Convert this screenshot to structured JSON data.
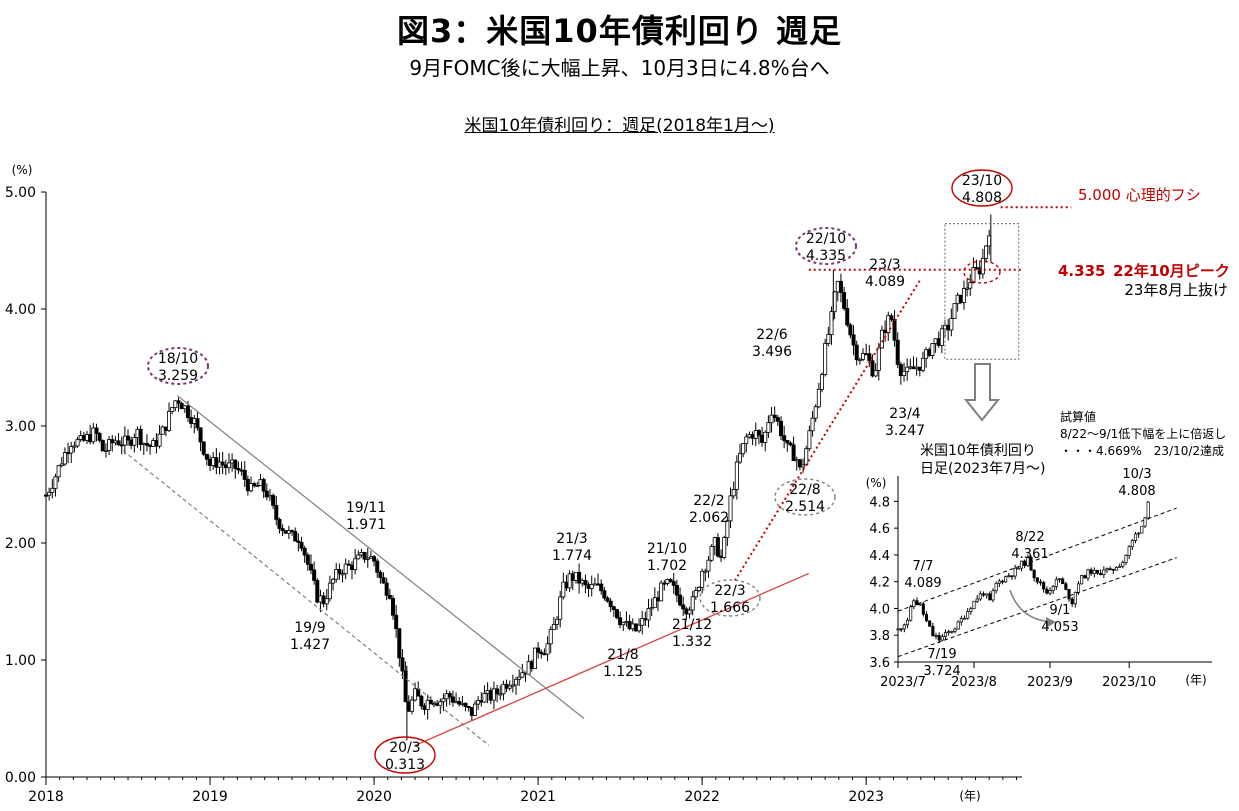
{
  "header": {
    "title": "図3：米国10年債利回り 週足",
    "subtitle": "9月FOMC後に大幅上昇、10月3日に4.8%台へ",
    "chart_title": "米国10年債利回り：週足(2018年1月～)"
  },
  "colors": {
    "candle": "#000000",
    "accent_red": "#c00000",
    "trend_red": "#d84040",
    "gray": "#7f7f7f",
    "purple_dotted": "#7a3470"
  },
  "chart_data": [
    {
      "type": "candlestick",
      "frequency": "weekly",
      "unit_label": "(%)",
      "x_unit_label": "(年)",
      "x_ticks": [
        "2018",
        "2019",
        "2020",
        "2021",
        "2022",
        "2023"
      ],
      "y_ticks": [
        "0.00",
        "1.00",
        "2.00",
        "3.00",
        "4.00",
        "5.00"
      ],
      "ylim": [
        0,
        5
      ],
      "xlim": [
        2018.0,
        2023.95
      ],
      "path": [
        [
          2018.0,
          2.41
        ],
        [
          2018.05,
          2.55
        ],
        [
          2018.1,
          2.72
        ],
        [
          2018.15,
          2.87
        ],
        [
          2018.22,
          2.86
        ],
        [
          2018.3,
          2.95
        ],
        [
          2018.35,
          2.78
        ],
        [
          2018.42,
          2.88
        ],
        [
          2018.5,
          2.85
        ],
        [
          2018.55,
          2.96
        ],
        [
          2018.6,
          2.85
        ],
        [
          2018.65,
          2.82
        ],
        [
          2018.72,
          2.97
        ],
        [
          2018.78,
          3.2
        ],
        [
          2018.8,
          3.24
        ],
        [
          2018.85,
          3.15
        ],
        [
          2018.9,
          3.05
        ],
        [
          2018.95,
          2.85
        ],
        [
          2019.0,
          2.67
        ],
        [
          2019.05,
          2.7
        ],
        [
          2019.1,
          2.65
        ],
        [
          2019.15,
          2.65
        ],
        [
          2019.2,
          2.58
        ],
        [
          2019.25,
          2.45
        ],
        [
          2019.3,
          2.5
        ],
        [
          2019.35,
          2.42
        ],
        [
          2019.4,
          2.22
        ],
        [
          2019.45,
          2.12
        ],
        [
          2019.5,
          2.05
        ],
        [
          2019.55,
          2.05
        ],
        [
          2019.6,
          1.8
        ],
        [
          2019.65,
          1.55
        ],
        [
          2019.69,
          1.5
        ],
        [
          2019.75,
          1.68
        ],
        [
          2019.8,
          1.78
        ],
        [
          2019.85,
          1.8
        ],
        [
          2019.9,
          1.85
        ],
        [
          2019.95,
          1.9
        ],
        [
          2020.0,
          1.85
        ],
        [
          2020.05,
          1.65
        ],
        [
          2020.1,
          1.58
        ],
        [
          2020.15,
          1.1
        ],
        [
          2020.2,
          0.55
        ],
        [
          2020.25,
          0.7
        ],
        [
          2020.3,
          0.62
        ],
        [
          2020.35,
          0.68
        ],
        [
          2020.4,
          0.65
        ],
        [
          2020.45,
          0.7
        ],
        [
          2020.5,
          0.65
        ],
        [
          2020.55,
          0.58
        ],
        [
          2020.6,
          0.55
        ],
        [
          2020.65,
          0.7
        ],
        [
          2020.7,
          0.68
        ],
        [
          2020.75,
          0.72
        ],
        [
          2020.8,
          0.8
        ],
        [
          2020.85,
          0.85
        ],
        [
          2020.9,
          0.9
        ],
        [
          2020.95,
          0.95
        ],
        [
          2021.0,
          1.1
        ],
        [
          2021.05,
          1.1
        ],
        [
          2021.1,
          1.3
        ],
        [
          2021.15,
          1.6
        ],
        [
          2021.2,
          1.72
        ],
        [
          2021.25,
          1.68
        ],
        [
          2021.3,
          1.6
        ],
        [
          2021.35,
          1.63
        ],
        [
          2021.4,
          1.58
        ],
        [
          2021.45,
          1.48
        ],
        [
          2021.5,
          1.35
        ],
        [
          2021.55,
          1.27
        ],
        [
          2021.6,
          1.25
        ],
        [
          2021.65,
          1.35
        ],
        [
          2021.7,
          1.48
        ],
        [
          2021.75,
          1.6
        ],
        [
          2021.8,
          1.65
        ],
        [
          2021.85,
          1.55
        ],
        [
          2021.9,
          1.45
        ],
        [
          2021.95,
          1.5
        ],
        [
          2022.0,
          1.77
        ],
        [
          2022.05,
          1.9
        ],
        [
          2022.08,
          2.0
        ],
        [
          2022.12,
          1.85
        ],
        [
          2022.17,
          2.35
        ],
        [
          2022.22,
          2.7
        ],
        [
          2022.27,
          2.9
        ],
        [
          2022.32,
          2.95
        ],
        [
          2022.37,
          2.85
        ],
        [
          2022.42,
          3.15
        ],
        [
          2022.47,
          3.0
        ],
        [
          2022.52,
          2.8
        ],
        [
          2022.57,
          2.75
        ],
        [
          2022.6,
          2.6
        ],
        [
          2022.65,
          2.9
        ],
        [
          2022.7,
          3.25
        ],
        [
          2022.75,
          3.65
        ],
        [
          2022.8,
          4.0
        ],
        [
          2022.82,
          4.25
        ],
        [
          2022.87,
          4.0
        ],
        [
          2022.92,
          3.7
        ],
        [
          2022.95,
          3.6
        ],
        [
          2023.0,
          3.6
        ],
        [
          2023.05,
          3.45
        ],
        [
          2023.1,
          3.8
        ],
        [
          2023.15,
          3.95
        ],
        [
          2023.2,
          3.5
        ],
        [
          2023.25,
          3.45
        ],
        [
          2023.3,
          3.5
        ],
        [
          2023.35,
          3.55
        ],
        [
          2023.4,
          3.7
        ],
        [
          2023.45,
          3.75
        ],
        [
          2023.5,
          3.85
        ],
        [
          2023.55,
          4.05
        ],
        [
          2023.6,
          4.15
        ],
        [
          2023.65,
          4.3
        ],
        [
          2023.7,
          4.35
        ],
        [
          2023.73,
          4.55
        ],
        [
          2023.76,
          4.75
        ]
      ],
      "annotations": [
        {
          "date": "18/10",
          "value": "3.259",
          "circle": "purple_dotted"
        },
        {
          "date": "19/9",
          "value": "1.427"
        },
        {
          "date": "19/11",
          "value": "1.971"
        },
        {
          "date": "20/3",
          "value": "0.313",
          "circle": "red"
        },
        {
          "date": "21/3",
          "value": "1.774"
        },
        {
          "date": "21/8",
          "value": "1.125"
        },
        {
          "date": "21/10",
          "value": "1.702"
        },
        {
          "date": "21/12",
          "value": "1.332"
        },
        {
          "date": "22/2",
          "value": "2.062"
        },
        {
          "date": "22/3",
          "value": "1.666",
          "circle": "gray_dotted"
        },
        {
          "date": "22/6",
          "value": "3.496"
        },
        {
          "date": "22/8",
          "value": "2.514",
          "circle": "gray_dotted"
        },
        {
          "date": "22/10",
          "value": "4.335",
          "circle": "purple_dotted"
        },
        {
          "date": "23/3",
          "value": "4.089"
        },
        {
          "date": "23/4",
          "value": "3.247"
        },
        {
          "date": "23/10",
          "value": "4.808",
          "circle": "red"
        }
      ],
      "notes": {
        "level_5000": "5.000 心理的フシ",
        "peak_level": "4.335",
        "peak_label": "22年10月ピーク",
        "breakout": "23年8月上抜け"
      }
    },
    {
      "type": "candlestick",
      "frequency": "daily",
      "title_line1": "米国10年債利回り",
      "title_line2": "日足(2023年7月～)",
      "unit_label": "(%)",
      "x_unit_label": "(年)",
      "x_ticks": [
        "2023/7",
        "2023/8",
        "2023/9",
        "2023/10"
      ],
      "y_ticks": [
        "3.6",
        "3.8",
        "4.0",
        "4.2",
        "4.4",
        "4.6",
        "4.8"
      ],
      "ylim": [
        3.6,
        4.9
      ],
      "path": [
        [
          0,
          3.84
        ],
        [
          3,
          3.92
        ],
        [
          5,
          4.06
        ],
        [
          7,
          4.02
        ],
        [
          9,
          3.9
        ],
        [
          11,
          3.8
        ],
        [
          13,
          3.77
        ],
        [
          15,
          3.8
        ],
        [
          17,
          3.84
        ],
        [
          19,
          3.88
        ],
        [
          21,
          3.95
        ],
        [
          23,
          4.02
        ],
        [
          25,
          4.08
        ],
        [
          27,
          4.12
        ],
        [
          29,
          4.05
        ],
        [
          31,
          4.18
        ],
        [
          33,
          4.22
        ],
        [
          35,
          4.25
        ],
        [
          37,
          4.28
        ],
        [
          39,
          4.33
        ],
        [
          41,
          4.36
        ],
        [
          43,
          4.25
        ],
        [
          45,
          4.18
        ],
        [
          47,
          4.12
        ],
        [
          49,
          4.18
        ],
        [
          51,
          4.22
        ],
        [
          53,
          4.13
        ],
        [
          55,
          4.05
        ],
        [
          57,
          4.2
        ],
        [
          59,
          4.25
        ],
        [
          61,
          4.28
        ],
        [
          63,
          4.25
        ],
        [
          65,
          4.3
        ],
        [
          67,
          4.27
        ],
        [
          69,
          4.32
        ],
        [
          71,
          4.35
        ],
        [
          73,
          4.45
        ],
        [
          75,
          4.55
        ],
        [
          77,
          4.62
        ],
        [
          78,
          4.7
        ],
        [
          79,
          4.8
        ]
      ],
      "annotations": [
        {
          "date": "7/7",
          "value": "4.089"
        },
        {
          "date": "7/19",
          "value": "3.724"
        },
        {
          "date": "8/22",
          "value": "4.361"
        },
        {
          "date": "9/1",
          "value": "4.053"
        },
        {
          "date": "10/3",
          "value": "4.808"
        }
      ],
      "notes": {
        "trial_title": "試算値",
        "trial_line1": "8/22～9/1低下幅を上に倍返し",
        "trial_line2": "・・・4.669%　23/10/2達成"
      }
    }
  ]
}
